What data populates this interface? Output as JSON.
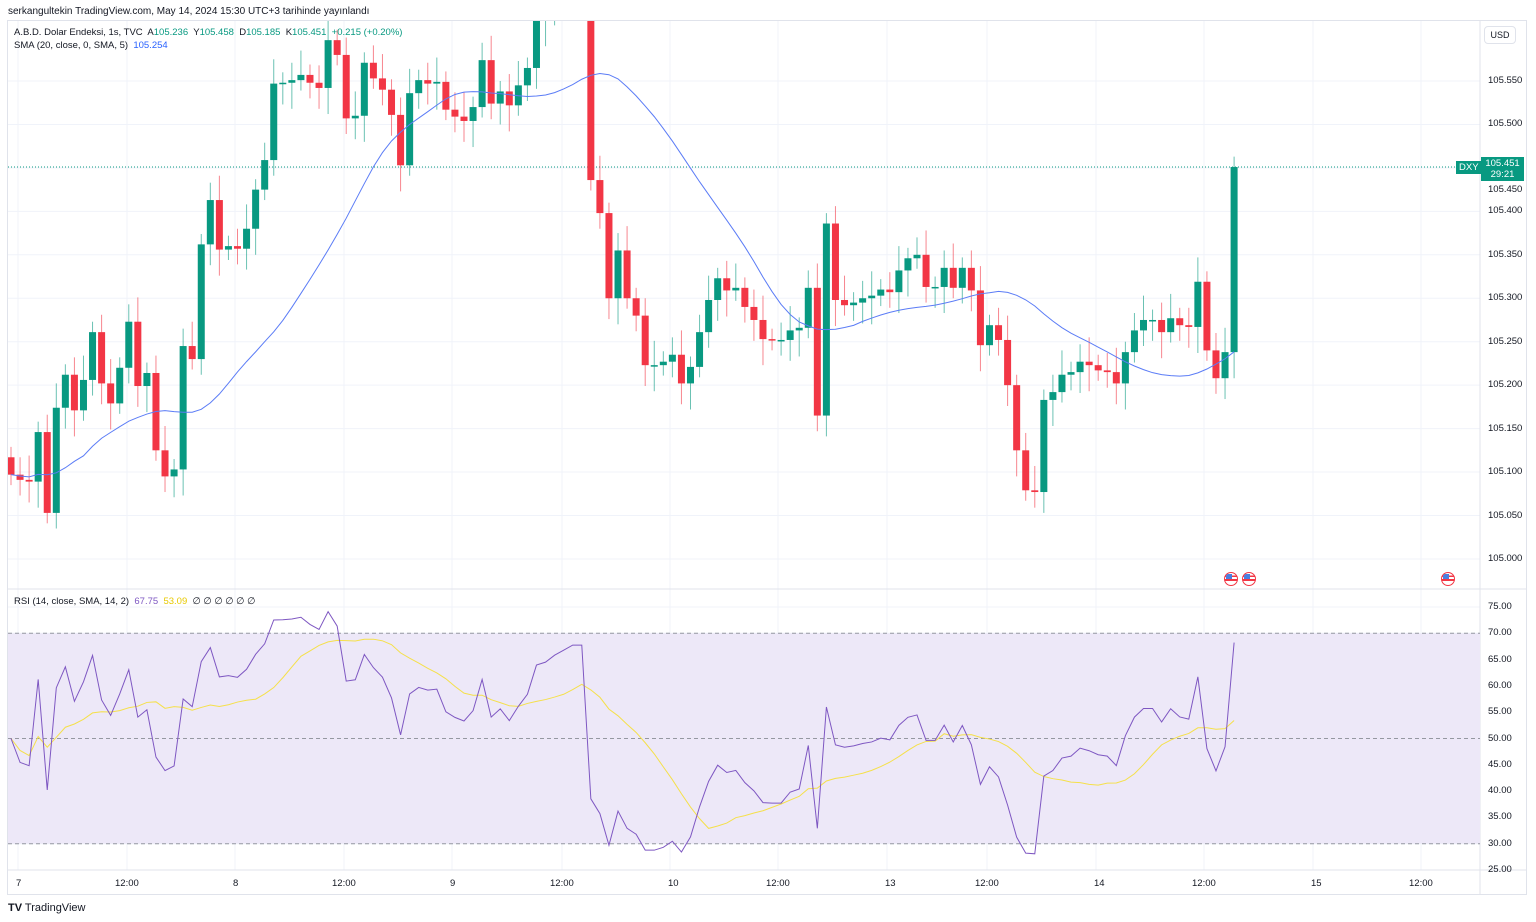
{
  "published": "serkangultekin TradingView.com, May 14, 2024 15:30 UTC+3 tarihinde yayınlandı",
  "symbol_legend": {
    "name": "A.B.D. Dolar Endeksi, 1s, TVC",
    "o_label": "A",
    "o": "105.236",
    "h_label": "Y",
    "h": "105.458",
    "l_label": "D",
    "l": "105.185",
    "c_label": "K",
    "c": "105.451",
    "change": "+0.215 (+0.20%)"
  },
  "sma_legend": {
    "label": "SMA (20, close, 0, SMA, 5)",
    "value": "105.254"
  },
  "rsi_legend": {
    "label": "RSI (14, close, SMA, 14, 2)",
    "rsi": "67.75",
    "ma": "53.09",
    "extras": "∅ ∅ ∅ ∅ ∅ ∅"
  },
  "currency": "USD",
  "last_price": {
    "ticker": "DXY",
    "price": "105.451",
    "countdown": "29:21"
  },
  "price_axis": [
    "105.550",
    "105.500",
    "105.450",
    "105.400",
    "105.350",
    "105.300",
    "105.250",
    "105.200",
    "105.150",
    "105.100",
    "105.050",
    "105.000"
  ],
  "rsi_axis": [
    "75.00",
    "70.00",
    "65.00",
    "60.00",
    "55.00",
    "50.00",
    "45.00",
    "40.00",
    "35.00",
    "30.00",
    "25.00"
  ],
  "time_axis": [
    "7",
    "12:00",
    "8",
    "12:00",
    "9",
    "12:00",
    "10",
    "12:00",
    "13",
    "12:00",
    "14",
    "12:00",
    "15",
    "12:00"
  ],
  "footer_logo": "TradingView",
  "colors": {
    "up": "#089981",
    "down": "#f23645",
    "sma": "#5b7cf6",
    "rsi": "#7e57c2",
    "rsi_ma": "#f5e04a",
    "rsi_band": "#ede8f8"
  },
  "event_icons": [
    "us-flag-icon",
    "us-flag-icon",
    "us-flag-icon"
  ],
  "chart_data": {
    "type": "candlestick",
    "symbol": "DXY",
    "interval": "1h",
    "ylim": [
      104.98,
      105.62
    ],
    "close": [
      105.097,
      105.091,
      105.089,
      105.146,
      105.053,
      105.174,
      105.212,
      105.171,
      105.206,
      105.261,
      105.202,
      105.179,
      105.22,
      105.273,
      105.199,
      105.214,
      105.125,
      105.095,
      105.103,
      105.245,
      105.23,
      105.362,
      105.413,
      105.356,
      105.36,
      105.357,
      105.38,
      105.425,
      105.459,
      105.547,
      105.548,
      105.551,
      105.557,
      105.548,
      105.542,
      105.597,
      105.58,
      105.507,
      105.51,
      105.571,
      105.553,
      105.54,
      105.511,
      105.453,
      105.536,
      105.551,
      105.547,
      105.549,
      105.517,
      105.509,
      105.504,
      105.52,
      105.574,
      105.524,
      105.538,
      105.522,
      105.545,
      105.565,
      105.62,
      105.626,
      105.64,
      105.65,
      105.66,
      105.66,
      105.436,
      105.398,
      105.3,
      105.355,
      105.3,
      105.28,
      105.223,
      105.223,
      105.227,
      105.235,
      105.202,
      105.221,
      105.261,
      105.298,
      105.323,
      105.309,
      105.312,
      105.29,
      105.275,
      105.253,
      105.252,
      105.252,
      105.263,
      105.266,
      105.312,
      105.165,
      105.386,
      105.298,
      105.292,
      105.295,
      105.3,
      105.303,
      105.31,
      105.307,
      105.332,
      105.346,
      105.35,
      105.313,
      105.313,
      105.335,
      105.312,
      105.335,
      105.309,
      105.246,
      105.269,
      105.252,
      105.2,
      105.125,
      105.079,
      105.077,
      105.183,
      105.192,
      105.212,
      105.215,
      105.227,
      105.223,
      105.217,
      105.215,
      105.202,
      105.238,
      105.263,
      105.275,
      105.275,
      105.261,
      105.277,
      105.269,
      105.267,
      105.319,
      105.24,
      105.208,
      105.238,
      105.451
    ],
    "sma_period": 20,
    "rsi_period": 14,
    "rsi_levels": [
      70,
      50,
      30
    ],
    "rsi_ylim": [
      25,
      75
    ]
  }
}
